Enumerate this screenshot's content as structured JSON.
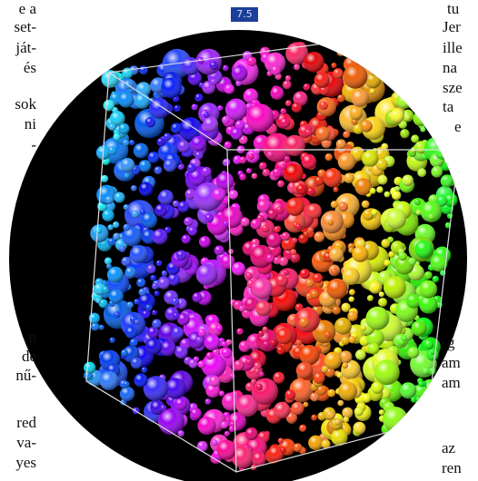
{
  "figure": {
    "label": "7.5"
  },
  "left_text": [
    "e a",
    "set-",
    "ját-",
    "és",
    "sok",
    "ni",
    "-",
    "n",
    "de",
    "nű-",
    "red",
    "va-",
    "yes"
  ],
  "right_text": [
    "tu",
    "Jer",
    "ille",
    "na",
    "sze",
    "ta",
    "e",
    "g",
    "am",
    "am",
    "az",
    "ren"
  ]
}
